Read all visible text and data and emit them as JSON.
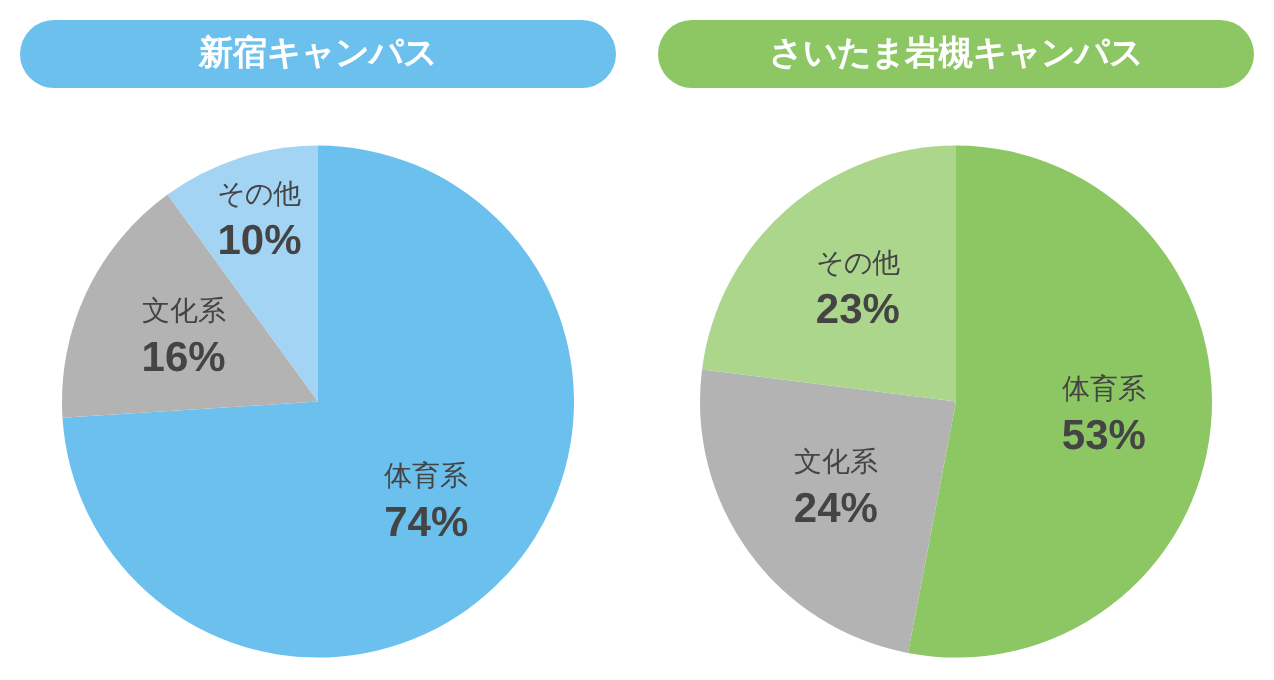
{
  "chart_data": [
    {
      "type": "pie",
      "title": "新宿キャンパス",
      "categories": [
        "体育系",
        "文化系",
        "その他"
      ],
      "values": [
        74,
        16,
        10
      ],
      "colors": [
        "#6cc0ee",
        "#b3b3b3",
        "#a3d4f4"
      ],
      "value_labels": [
        "74%",
        "16%",
        "10%"
      ],
      "legend": false
    },
    {
      "type": "pie",
      "title": "さいたま岩槻キャンパス",
      "categories": [
        "体育系",
        "文化系",
        "その他"
      ],
      "values": [
        53,
        24,
        23
      ],
      "colors": [
        "#8cc763",
        "#b3b3b3",
        "#acd68c"
      ],
      "value_labels": [
        "53%",
        "24%",
        "23%"
      ],
      "legend": false
    }
  ]
}
